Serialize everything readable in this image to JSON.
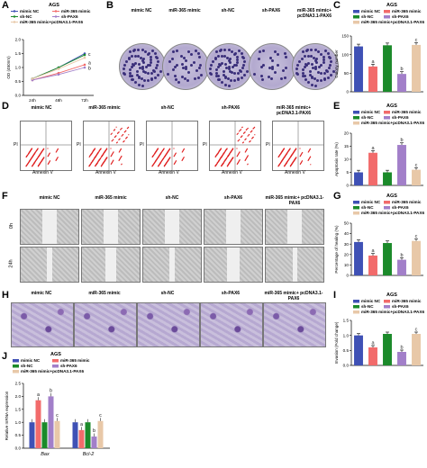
{
  "labels": {
    "A": "A",
    "B": "B",
    "C": "C",
    "D": "D",
    "E": "E",
    "F": "F",
    "G": "G",
    "H": "H",
    "I": "I",
    "J": "J"
  },
  "title": "AGS",
  "colors": {
    "mimic_nc": "#3f51b5",
    "mir365": "#f26b6b",
    "sh_nc": "#1b8a2a",
    "sh_pax6": "#a27fc9",
    "combo": "#e8c8a8",
    "blue_line": "#2233aa"
  },
  "groups": [
    "mimic NC",
    "miR-365 mimic",
    "sh-NC",
    "sh-PAX6",
    "miR-365 mimic+pcDNA3.1-PAX6"
  ],
  "captions_B": [
    "mimic NC",
    "miR-365 mimic",
    "sh-NC",
    "sh-PAX6",
    "miR-365 mimic+ pcDNA3.1-PAX6"
  ],
  "axis_labels": {
    "flow_x": "Annexin V",
    "flow_y": "PI",
    "time_0": "0h",
    "time_24": "24h"
  },
  "chart_data": [
    {
      "panel": "A",
      "type": "line",
      "title": "AGS",
      "ylabel": "OD (450nm)",
      "x": [
        "24h",
        "48h",
        "72h"
      ],
      "ylim": [
        0,
        2.0
      ],
      "yticks": [
        "0.0",
        "0.5",
        "1.0",
        "1.5",
        "2.0"
      ],
      "series": [
        {
          "name": "mimic NC",
          "values": [
            0.6,
            1.0,
            1.5
          ]
        },
        {
          "name": "miR-365 mimic",
          "values": [
            0.55,
            0.8,
            1.1
          ]
        },
        {
          "name": "sh-NC",
          "values": [
            0.6,
            1.0,
            1.45
          ]
        },
        {
          "name": "sh-PAX6",
          "values": [
            0.55,
            0.75,
            1.0
          ]
        },
        {
          "name": "miR-365 mimic+pcDNA3.1-PAX6",
          "values": [
            0.6,
            0.95,
            1.35
          ]
        }
      ],
      "annotations": [
        "c",
        "a",
        "b"
      ]
    },
    {
      "panel": "C",
      "type": "bar",
      "title": "AGS",
      "ylabel": "Colony number",
      "ylim": [
        0,
        150
      ],
      "yticks": [
        "0",
        "50",
        "100",
        "150"
      ],
      "categories": [
        "mimic NC",
        "miR-365 mimic",
        "sh-NC",
        "sh-PAX6",
        "miR-365 mimic+pcDNA3.1-PAX6"
      ],
      "values": [
        122,
        68,
        125,
        48,
        126
      ],
      "annotations": [
        "",
        "a",
        "",
        "b",
        "c"
      ]
    },
    {
      "panel": "E",
      "type": "bar",
      "title": "AGS",
      "ylabel": "Apoptosis rate (%)",
      "ylim": [
        0,
        20
      ],
      "yticks": [
        "0",
        "5",
        "10",
        "15",
        "20"
      ],
      "categories": [
        "mimic NC",
        "miR-365 mimic",
        "sh-NC",
        "sh-PAX6",
        "miR-365 mimic+pcDNA3.1-PAX6"
      ],
      "values": [
        5,
        12.5,
        5,
        15.5,
        6
      ],
      "annotations": [
        "",
        "a",
        "",
        "b",
        "c"
      ]
    },
    {
      "panel": "G",
      "type": "bar",
      "title": "AGS",
      "ylabel": "Percentage of healing (%)",
      "ylim": [
        0,
        50
      ],
      "yticks": [
        "0",
        "10",
        "20",
        "30",
        "40",
        "50"
      ],
      "categories": [
        "mimic NC",
        "miR-365 mimic",
        "sh-NC",
        "sh-PAX6",
        "miR-365 mimic+pcDNA3.1-PAX6"
      ],
      "values": [
        32,
        19,
        31,
        15,
        33
      ],
      "annotations": [
        "",
        "a",
        "",
        "b",
        "c"
      ]
    },
    {
      "panel": "I",
      "type": "bar",
      "title": "AGS",
      "ylabel": "Invasion (Fold change)",
      "ylim": [
        0,
        1.5
      ],
      "yticks": [
        "0.0",
        "0.5",
        "1.0",
        "1.5"
      ],
      "categories": [
        "mimic NC",
        "miR-365 mimic",
        "sh-NC",
        "sh-PAX6",
        "miR-365 mimic+pcDNA3.1-PAX6"
      ],
      "values": [
        1.0,
        0.6,
        1.05,
        0.45,
        1.05
      ],
      "annotations": [
        "",
        "a",
        "",
        "b",
        "c"
      ]
    },
    {
      "panel": "J",
      "type": "bar",
      "title": "AGS",
      "ylabel": "Relative mRNA expression",
      "ylim": [
        0,
        2.5
      ],
      "yticks": [
        "0.0",
        "0.5",
        "1.0",
        "1.5",
        "2.0",
        "2.5"
      ],
      "categories": [
        "Bax",
        "Bcl-2"
      ],
      "series": [
        {
          "name": "mimic NC",
          "values": [
            1.0,
            1.0
          ]
        },
        {
          "name": "miR-365 mimic",
          "values": [
            1.85,
            0.7
          ]
        },
        {
          "name": "sh-NC",
          "values": [
            1.0,
            1.0
          ]
        },
        {
          "name": "sh-PAX6",
          "values": [
            2.0,
            0.45
          ]
        },
        {
          "name": "miR-365 mimic+pcDNA3.1-PAX6",
          "values": [
            1.05,
            1.05
          ]
        }
      ],
      "annotations": [
        "a",
        "b",
        "c",
        "a",
        "b",
        "c"
      ]
    }
  ]
}
